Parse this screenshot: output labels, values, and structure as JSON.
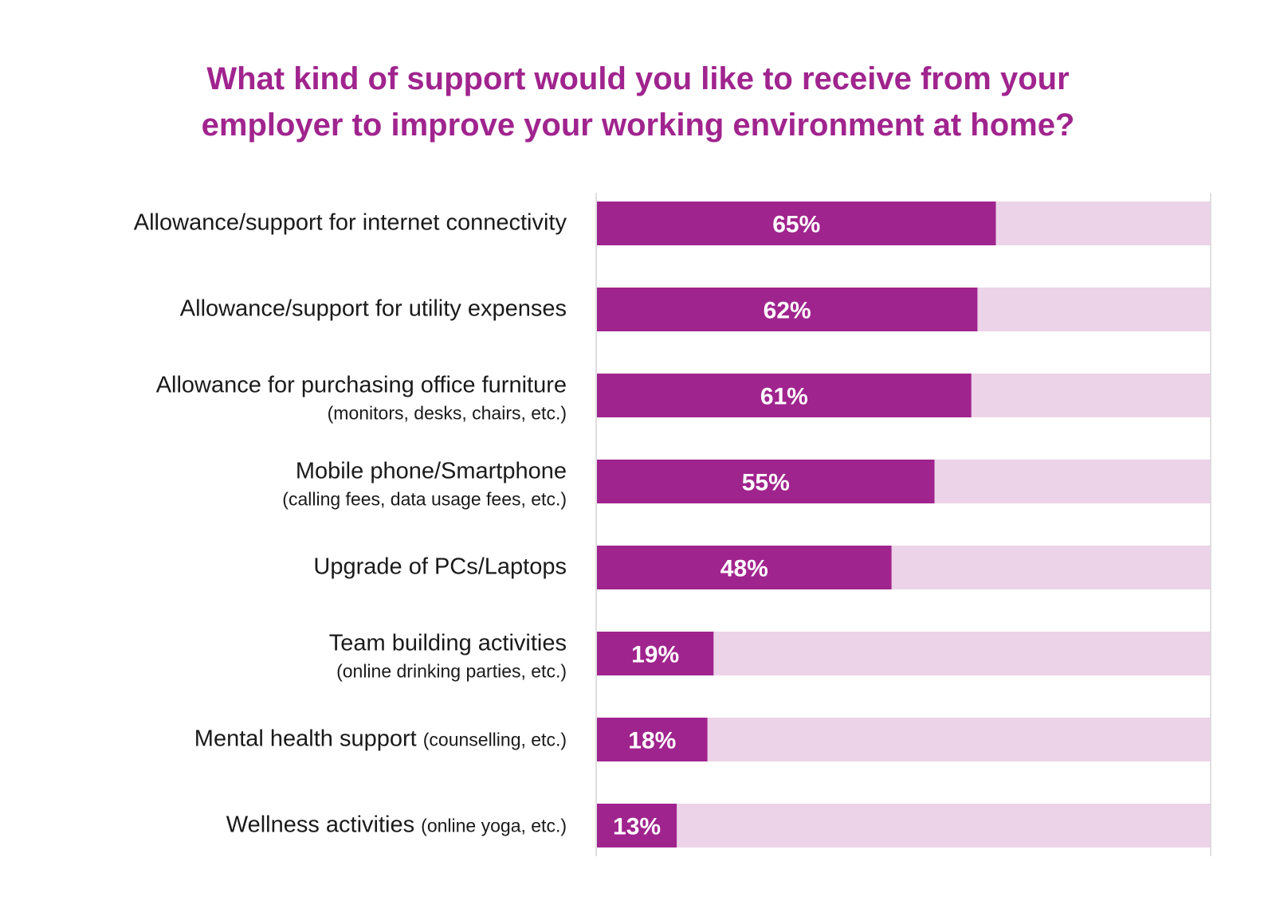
{
  "chart_data": {
    "type": "bar",
    "orientation": "horizontal",
    "title_lines": [
      "What kind of support would you like to receive from your",
      "employer to improve your working environment at home?"
    ],
    "categories": [
      {
        "main": "Allowance/support for internet connectivity",
        "sub": "",
        "sub_inline": false
      },
      {
        "main": "Allowance/support for utility expenses",
        "sub": "",
        "sub_inline": false
      },
      {
        "main": "Allowance for purchasing office furniture",
        "sub": "(monitors, desks, chairs, etc.)",
        "sub_inline": false
      },
      {
        "main": "Mobile phone/Smartphone",
        "sub": "(calling fees, data usage fees, etc.)",
        "sub_inline": false
      },
      {
        "main": "Upgrade of PCs/Laptops",
        "sub": "",
        "sub_inline": false
      },
      {
        "main": "Team building activities",
        "sub": "(online drinking parties, etc.)",
        "sub_inline": false
      },
      {
        "main": "Mental health support",
        "sub": "(counselling, etc.)",
        "sub_inline": true
      },
      {
        "main": "Wellness activities",
        "sub": "(online yoga, etc.)",
        "sub_inline": true
      }
    ],
    "values": [
      65,
      62,
      61,
      55,
      48,
      19,
      18,
      13
    ],
    "value_labels": [
      "65%",
      "62%",
      "61%",
      "55%",
      "48%",
      "19%",
      "18%",
      "13%"
    ],
    "xlim": [
      0,
      100
    ],
    "colors": {
      "bar": "#a0248e",
      "track": "#ecd3e8",
      "title": "#a0248e",
      "axis": "#d6d6d6"
    }
  }
}
